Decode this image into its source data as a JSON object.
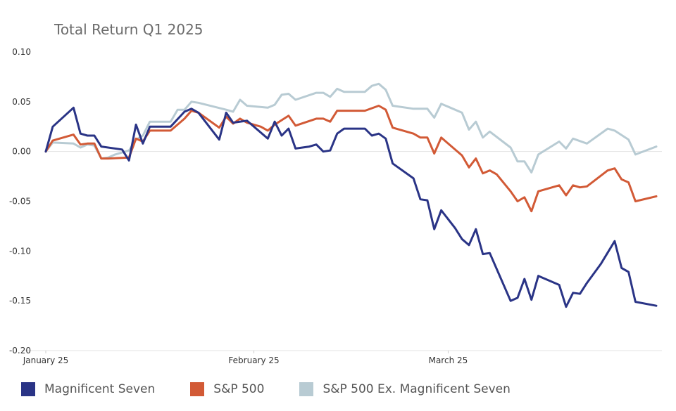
{
  "chart_data": {
    "type": "line",
    "title": "Total Return Q1 2025",
    "xlabel": "",
    "ylabel": "",
    "ylim": [
      -0.2,
      0.1
    ],
    "yticks": [
      "0.10",
      "0.05",
      "0.00",
      "-0.05",
      "-0.10",
      "-0.15",
      "-0.20"
    ],
    "ytick_values": [
      0.1,
      0.05,
      0.0,
      -0.05,
      -0.1,
      -0.15,
      -0.2
    ],
    "xticks": [
      {
        "label": "January 25",
        "index": 0
      },
      {
        "label": "February 25",
        "index": 30
      },
      {
        "label": "March 25",
        "index": 58
      }
    ],
    "x_count": 88,
    "grid": "horizontal",
    "legend_position": "bottom",
    "series": [
      {
        "name": "Magnificent Seven",
        "color": "#2a3486",
        "points": [
          [
            0,
            0
          ],
          [
            1,
            0.025
          ],
          [
            4,
            0.044
          ],
          [
            5,
            0.018
          ],
          [
            6,
            0.016
          ],
          [
            7,
            0.016
          ],
          [
            8,
            0.005
          ],
          [
            11,
            0.002
          ],
          [
            12,
            -0.009
          ],
          [
            13,
            0.027
          ],
          [
            14,
            0.008
          ],
          [
            15,
            0.025
          ],
          [
            18,
            0.025
          ],
          [
            20,
            0.04
          ],
          [
            21,
            0.043
          ],
          [
            22,
            0.039
          ],
          [
            25,
            0.012
          ],
          [
            26,
            0.039
          ],
          [
            27,
            0.029
          ],
          [
            29,
            0.031
          ],
          [
            32,
            0.013
          ],
          [
            33,
            0.03
          ],
          [
            34,
            0.016
          ],
          [
            35,
            0.023
          ],
          [
            36,
            0.003
          ],
          [
            38,
            0.005
          ],
          [
            39,
            0.007
          ],
          [
            40,
            0.0
          ],
          [
            41,
            0.001
          ],
          [
            42,
            0.018
          ],
          [
            43,
            0.023
          ],
          [
            46,
            0.023
          ],
          [
            47,
            0.016
          ],
          [
            48,
            0.018
          ],
          [
            49,
            0.013
          ],
          [
            50,
            -0.012
          ],
          [
            53,
            -0.027
          ],
          [
            54,
            -0.048
          ],
          [
            55,
            -0.049
          ],
          [
            56,
            -0.078
          ],
          [
            57,
            -0.059
          ],
          [
            59,
            -0.077
          ],
          [
            60,
            -0.088
          ],
          [
            61,
            -0.094
          ],
          [
            62,
            -0.078
          ],
          [
            63,
            -0.103
          ],
          [
            64,
            -0.102
          ],
          [
            67,
            -0.15
          ],
          [
            68,
            -0.147
          ],
          [
            69,
            -0.128
          ],
          [
            70,
            -0.149
          ],
          [
            71,
            -0.125
          ],
          [
            74,
            -0.134
          ],
          [
            75,
            -0.156
          ],
          [
            76,
            -0.142
          ],
          [
            77,
            -0.143
          ],
          [
            78,
            -0.132
          ],
          [
            80,
            -0.113
          ],
          [
            82,
            -0.09
          ],
          [
            83,
            -0.117
          ],
          [
            84,
            -0.121
          ],
          [
            85,
            -0.151
          ],
          [
            88,
            -0.155
          ]
        ]
      },
      {
        "name": "S&P 500",
        "color": "#d25a36",
        "points": [
          [
            0,
            0
          ],
          [
            1,
            0.011
          ],
          [
            4,
            0.017
          ],
          [
            5,
            0.007
          ],
          [
            6,
            0.008
          ],
          [
            7,
            0.008
          ],
          [
            8,
            -0.007
          ],
          [
            9,
            -0.007
          ],
          [
            12,
            -0.006
          ],
          [
            13,
            0.013
          ],
          [
            14,
            0.01
          ],
          [
            15,
            0.021
          ],
          [
            18,
            0.021
          ],
          [
            20,
            0.033
          ],
          [
            21,
            0.041
          ],
          [
            22,
            0.039
          ],
          [
            25,
            0.024
          ],
          [
            26,
            0.035
          ],
          [
            27,
            0.028
          ],
          [
            28,
            0.033
          ],
          [
            29,
            0.029
          ],
          [
            31,
            0.025
          ],
          [
            32,
            0.021
          ],
          [
            33,
            0.027
          ],
          [
            35,
            0.036
          ],
          [
            36,
            0.026
          ],
          [
            39,
            0.033
          ],
          [
            40,
            0.033
          ],
          [
            41,
            0.03
          ],
          [
            42,
            0.041
          ],
          [
            46,
            0.041
          ],
          [
            48,
            0.046
          ],
          [
            49,
            0.042
          ],
          [
            50,
            0.024
          ],
          [
            53,
            0.018
          ],
          [
            54,
            0.014
          ],
          [
            55,
            0.014
          ],
          [
            56,
            -0.002
          ],
          [
            57,
            0.014
          ],
          [
            60,
            -0.004
          ],
          [
            61,
            -0.016
          ],
          [
            62,
            -0.007
          ],
          [
            63,
            -0.022
          ],
          [
            64,
            -0.019
          ],
          [
            65,
            -0.023
          ],
          [
            67,
            -0.04
          ],
          [
            68,
            -0.05
          ],
          [
            69,
            -0.046
          ],
          [
            70,
            -0.06
          ],
          [
            71,
            -0.04
          ],
          [
            74,
            -0.034
          ],
          [
            75,
            -0.044
          ],
          [
            76,
            -0.034
          ],
          [
            77,
            -0.036
          ],
          [
            78,
            -0.035
          ],
          [
            81,
            -0.019
          ],
          [
            82,
            -0.017
          ],
          [
            83,
            -0.028
          ],
          [
            84,
            -0.031
          ],
          [
            85,
            -0.05
          ],
          [
            88,
            -0.045
          ]
        ]
      },
      {
        "name": "S&P 500 Ex. Magnificent Seven",
        "color": "#b8cbd3",
        "points": [
          [
            0,
            0
          ],
          [
            1,
            0.009
          ],
          [
            4,
            0.008
          ],
          [
            5,
            0.004
          ],
          [
            6,
            0.007
          ],
          [
            7,
            0.006
          ],
          [
            8,
            -0.007
          ],
          [
            9,
            -0.006
          ],
          [
            10,
            -0.003
          ],
          [
            12,
            0.001
          ],
          [
            13,
            0.012
          ],
          [
            14,
            0.016
          ],
          [
            15,
            0.03
          ],
          [
            18,
            0.03
          ],
          [
            19,
            0.042
          ],
          [
            20,
            0.042
          ],
          [
            21,
            0.05
          ],
          [
            22,
            0.049
          ],
          [
            26,
            0.042
          ],
          [
            27,
            0.04
          ],
          [
            28,
            0.052
          ],
          [
            29,
            0.046
          ],
          [
            32,
            0.044
          ],
          [
            33,
            0.047
          ],
          [
            34,
            0.057
          ],
          [
            35,
            0.058
          ],
          [
            36,
            0.052
          ],
          [
            39,
            0.059
          ],
          [
            40,
            0.059
          ],
          [
            41,
            0.055
          ],
          [
            42,
            0.063
          ],
          [
            43,
            0.06
          ],
          [
            46,
            0.06
          ],
          [
            47,
            0.066
          ],
          [
            48,
            0.068
          ],
          [
            49,
            0.062
          ],
          [
            50,
            0.046
          ],
          [
            53,
            0.043
          ],
          [
            54,
            0.043
          ],
          [
            55,
            0.043
          ],
          [
            56,
            0.034
          ],
          [
            57,
            0.048
          ],
          [
            60,
            0.039
          ],
          [
            61,
            0.022
          ],
          [
            62,
            0.03
          ],
          [
            63,
            0.014
          ],
          [
            64,
            0.02
          ],
          [
            67,
            0.004
          ],
          [
            68,
            -0.01
          ],
          [
            69,
            -0.01
          ],
          [
            70,
            -0.021
          ],
          [
            71,
            -0.003
          ],
          [
            74,
            0.01
          ],
          [
            75,
            0.003
          ],
          [
            76,
            0.013
          ],
          [
            78,
            0.008
          ],
          [
            81,
            0.023
          ],
          [
            82,
            0.021
          ],
          [
            84,
            0.012
          ],
          [
            85,
            -0.003
          ],
          [
            88,
            0.005
          ]
        ]
      }
    ]
  }
}
